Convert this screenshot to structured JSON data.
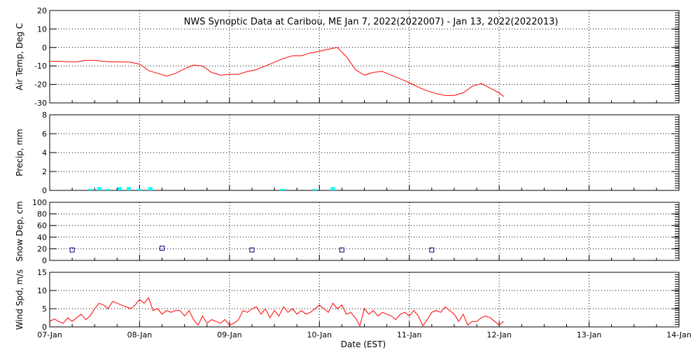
{
  "title": "NWS Synoptic Data at Caribou, ME   Jan  7, 2022(2022007) - Jan 13, 2022(2022013)",
  "x_axis": {
    "label": "Date (EST)",
    "ticks": [
      "07-Jan",
      "08-Jan",
      "09-Jan",
      "10-Jan",
      "11-Jan",
      "12-Jan",
      "13-Jan",
      "14-Jan"
    ],
    "range_days": [
      0,
      7
    ]
  },
  "colors": {
    "temp": "#ff0000",
    "precip": "#00ffff",
    "snow": "#000080",
    "wind": "#ff0000",
    "axis": "#000000"
  },
  "chart_data": [
    {
      "type": "line",
      "name": "air-temp",
      "ylabel": "Air Temp, Deg C",
      "ylim": [
        -30,
        20
      ],
      "yticks": [
        -30,
        -20,
        -10,
        0,
        10,
        20
      ],
      "x": [
        0,
        0.1,
        0.2,
        0.3,
        0.4,
        0.5,
        0.6,
        0.7,
        0.8,
        0.9,
        1.0,
        1.1,
        1.2,
        1.3,
        1.4,
        1.5,
        1.6,
        1.7,
        1.8,
        1.9,
        2.0,
        2.1,
        2.2,
        2.3,
        2.4,
        2.5,
        2.6,
        2.7,
        2.8,
        2.9,
        3.0,
        3.1,
        3.2,
        3.3,
        3.4,
        3.5,
        3.6,
        3.7,
        3.8,
        3.9,
        4.0,
        4.1,
        4.2,
        4.3,
        4.4,
        4.5,
        4.6,
        4.7,
        4.8,
        4.9,
        5.0,
        5.05
      ],
      "values": [
        -7.5,
        -7.5,
        -7.7,
        -7.8,
        -7,
        -7,
        -7.5,
        -7.8,
        -7.8,
        -8,
        -9,
        -12.5,
        -14,
        -15.5,
        -14,
        -11.5,
        -9.5,
        -10,
        -13.5,
        -15,
        -14.5,
        -14.5,
        -13,
        -12,
        -10,
        -8,
        -6,
        -4.5,
        -4.5,
        -3,
        -2,
        -1,
        0,
        -5,
        -12,
        -15,
        -13.5,
        -13,
        -15,
        -17,
        -19,
        -21.5,
        -23.5,
        -25,
        -26,
        -26,
        -24.5,
        -21,
        -19.5,
        -22,
        -24.5,
        -26.5
      ]
    },
    {
      "type": "bar",
      "name": "precip",
      "ylabel": "Precip, mm",
      "ylim": [
        0,
        8
      ],
      "yticks": [
        0,
        2,
        4,
        6,
        8
      ],
      "x": [
        0.45,
        0.55,
        0.65,
        0.78,
        0.88,
        1.0,
        1.12,
        2.58,
        2.6,
        2.95,
        3.15
      ],
      "values": [
        0.05,
        0.35,
        0.05,
        0.35,
        0.35,
        0.1,
        0.35,
        0.02,
        0.05,
        0.05,
        0.35
      ]
    },
    {
      "type": "scatter",
      "name": "snow-depth",
      "ylabel": "Snow Dep, cm",
      "ylim": [
        0,
        100
      ],
      "yticks": [
        0,
        20,
        40,
        60,
        80,
        100
      ],
      "x": [
        0.25,
        1.25,
        2.25,
        3.25,
        4.25
      ],
      "values": [
        18,
        21,
        18,
        18,
        18
      ]
    },
    {
      "type": "line",
      "name": "wind-speed",
      "ylabel": "Wind Spd, m/s",
      "ylim": [
        0,
        15
      ],
      "yticks": [
        0,
        5,
        10,
        15
      ],
      "x": [
        0,
        0.05,
        0.1,
        0.15,
        0.2,
        0.25,
        0.3,
        0.35,
        0.4,
        0.45,
        0.5,
        0.55,
        0.6,
        0.65,
        0.7,
        0.75,
        0.8,
        0.85,
        0.9,
        0.95,
        1.0,
        1.05,
        1.1,
        1.15,
        1.2,
        1.25,
        1.3,
        1.35,
        1.4,
        1.45,
        1.5,
        1.55,
        1.6,
        1.65,
        1.7,
        1.75,
        1.8,
        1.85,
        1.9,
        1.95,
        2.0,
        2.05,
        2.1,
        2.15,
        2.2,
        2.25,
        2.3,
        2.35,
        2.4,
        2.45,
        2.5,
        2.55,
        2.6,
        2.65,
        2.7,
        2.75,
        2.8,
        2.85,
        2.9,
        2.95,
        3.0,
        3.05,
        3.1,
        3.15,
        3.2,
        3.25,
        3.3,
        3.35,
        3.4,
        3.45,
        3.5,
        3.55,
        3.6,
        3.65,
        3.7,
        3.75,
        3.8,
        3.85,
        3.9,
        3.95,
        4.0,
        4.05,
        4.1,
        4.15,
        4.2,
        4.25,
        4.3,
        4.35,
        4.4,
        4.45,
        4.5,
        4.55,
        4.6,
        4.65,
        4.7,
        4.75,
        4.8,
        4.85,
        4.9,
        4.95,
        5.0,
        5.05
      ],
      "values": [
        1.5,
        2.2,
        1.5,
        1.0,
        2.5,
        1.5,
        2.5,
        3.5,
        2.0,
        3.0,
        5.0,
        6.5,
        6.0,
        5.0,
        7.0,
        6.5,
        6.0,
        5.5,
        5.0,
        6.0,
        7.5,
        6.5,
        8.0,
        4.5,
        5.0,
        3.5,
        4.5,
        4.0,
        4.5,
        4.5,
        3.0,
        4.5,
        2.0,
        0.5,
        3.0,
        1.0,
        2.0,
        1.5,
        1.0,
        2.0,
        0.5,
        1.0,
        2.0,
        4.5,
        4.0,
        5.0,
        5.5,
        3.5,
        5.0,
        2.5,
        4.5,
        3.0,
        5.5,
        4.0,
        5.0,
        3.5,
        4.5,
        3.5,
        4.0,
        5.0,
        6.0,
        5.0,
        4.0,
        6.5,
        5.0,
        6.0,
        3.5,
        4.0,
        2.5,
        0.3,
        5.0,
        3.5,
        4.5,
        3.0,
        4.0,
        3.5,
        3.0,
        2.0,
        3.5,
        4.0,
        3.0,
        4.5,
        3.0,
        0.3,
        2.0,
        4.0,
        4.5,
        4.0,
        5.5,
        4.5,
        3.5,
        1.5,
        3.5,
        0.5,
        1.5,
        1.5,
        2.5,
        3.0,
        2.5,
        1.5,
        0.5,
        1.5
      ]
    }
  ]
}
